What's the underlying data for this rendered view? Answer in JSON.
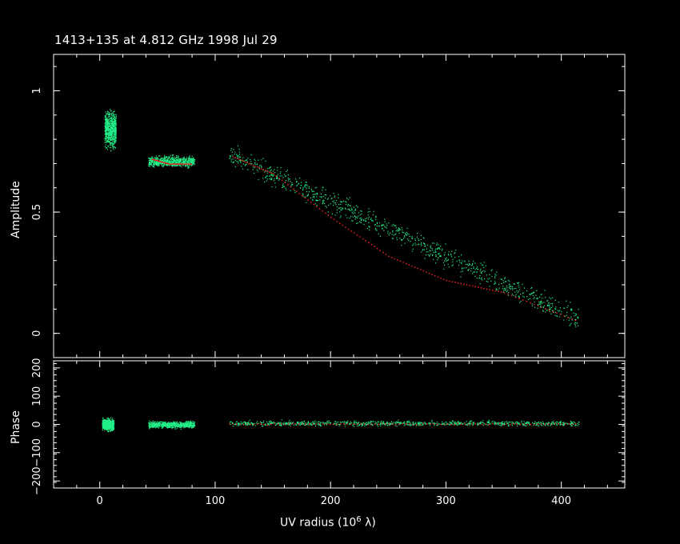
{
  "chart_data": {
    "title": "1413+135 at 4.812 GHz 1998 Jul 29",
    "xlabel": "UV radius  (10",
    "xlabel_exp": "6",
    "xlabel_unit": " λ)",
    "type": "scatter",
    "colors": {
      "data": "#22ee88",
      "model": "#ee2222",
      "axes": "#ffffff",
      "background": "#000000"
    },
    "xlim": [
      -40,
      455
    ],
    "xticks": [
      {
        "value": 0,
        "label": "0"
      },
      {
        "value": 100,
        "label": "100"
      },
      {
        "value": 200,
        "label": "200"
      },
      {
        "value": 300,
        "label": "300"
      },
      {
        "value": 400,
        "label": "400"
      }
    ],
    "panels": [
      {
        "ylabel": "Amplitude",
        "ylim": [
          -0.1,
          1.15
        ],
        "yticks": [
          {
            "value": 0,
            "label": "0"
          },
          {
            "value": 0.5,
            "label": "0.5"
          },
          {
            "value": 1,
            "label": "1"
          }
        ],
        "data_clusters": [
          {
            "x_range": [
              4,
              14
            ],
            "y_center": 0.84,
            "y_spread": 0.05
          },
          {
            "x_range": [
              42,
              82
            ],
            "y_center": 0.71,
            "y_spread": 0.02
          },
          {
            "x_range": [
              112,
              415
            ],
            "y_start": 0.74,
            "y_end": 0.06,
            "y_spread": 0.04
          }
        ],
        "model_points": [
          {
            "x": 45,
            "y": 0.72
          },
          {
            "x": 60,
            "y": 0.7
          },
          {
            "x": 80,
            "y": 0.7
          },
          {
            "x": 115,
            "y": 0.73
          },
          {
            "x": 150,
            "y": 0.66
          },
          {
            "x": 200,
            "y": 0.48
          },
          {
            "x": 250,
            "y": 0.32
          },
          {
            "x": 300,
            "y": 0.22
          },
          {
            "x": 350,
            "y": 0.17
          },
          {
            "x": 415,
            "y": 0.05
          }
        ]
      },
      {
        "ylabel": "Phase",
        "ylim": [
          -225,
          225
        ],
        "yticks": [
          {
            "value": -200,
            "label": "−200"
          },
          {
            "value": -100,
            "label": "−100"
          },
          {
            "value": 0,
            "label": "0"
          },
          {
            "value": 100,
            "label": "100"
          },
          {
            "value": 200,
            "label": "200"
          }
        ],
        "data_clusters": [
          {
            "x_range": [
              2,
              12
            ],
            "y_center": 0,
            "y_spread": 18
          },
          {
            "x_range": [
              42,
              82
            ],
            "y_center": 0,
            "y_spread": 10
          },
          {
            "x_range": [
              112,
              415
            ],
            "y_center": 5,
            "y_spread": 8
          }
        ]
      }
    ]
  }
}
